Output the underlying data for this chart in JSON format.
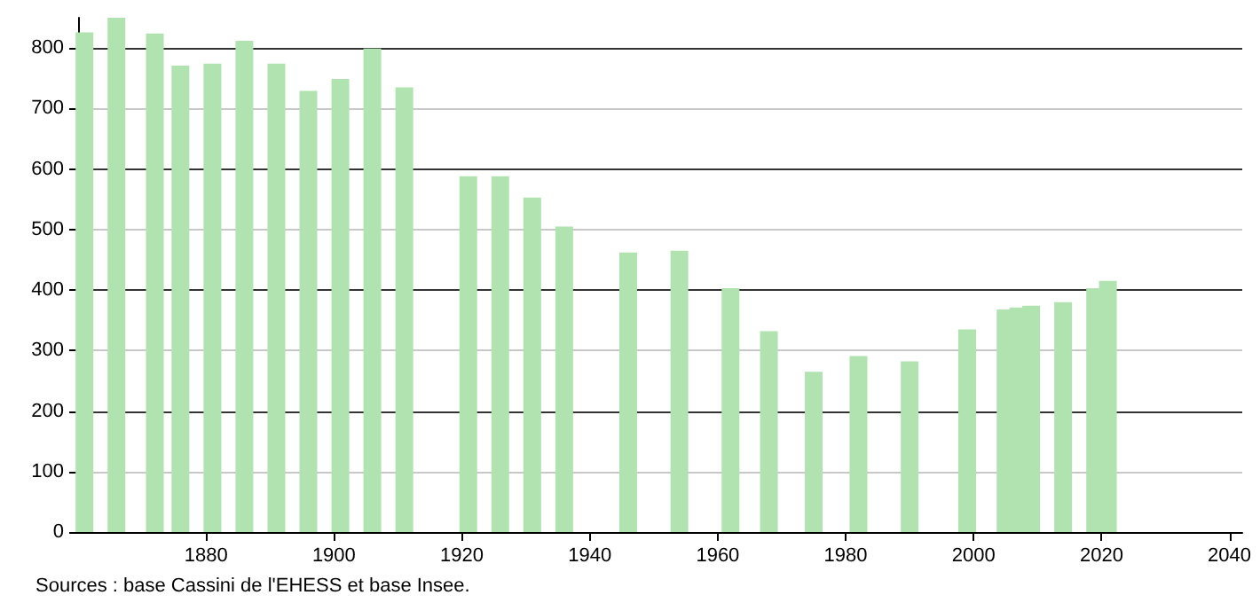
{
  "chart_data": {
    "type": "bar",
    "x": [
      1861,
      1866,
      1872,
      1876,
      1881,
      1886,
      1891,
      1896,
      1901,
      1906,
      1911,
      1921,
      1926,
      1931,
      1936,
      1946,
      1954,
      1962,
      1968,
      1975,
      1982,
      1990,
      1999,
      2005,
      2007,
      2009,
      2014,
      2019,
      2021
    ],
    "values": [
      826,
      850,
      824,
      771,
      774,
      812,
      774,
      729,
      749,
      799,
      735,
      588,
      588,
      553,
      505,
      462,
      465,
      403,
      332,
      265,
      291,
      282,
      335,
      368,
      371,
      374,
      380,
      403,
      415
    ],
    "color": "#b0e3b0",
    "xlim": [
      1860,
      2042
    ],
    "xticks": [
      1880,
      1900,
      1920,
      1940,
      1960,
      1980,
      2000,
      2020,
      2040
    ],
    "ylim": [
      0,
      850
    ],
    "yticks": [
      0,
      100,
      200,
      300,
      400,
      500,
      600,
      700,
      800
    ],
    "grid": "y",
    "annotations": [
      "Sources : base Cassini de l'EHESS et base Insee."
    ]
  }
}
